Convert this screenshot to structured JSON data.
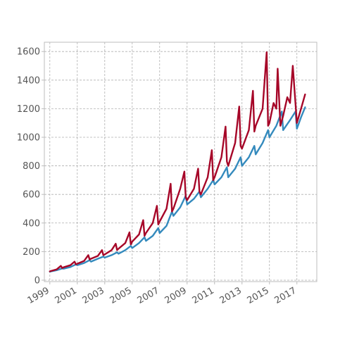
{
  "chart_data": {
    "type": "line",
    "title": "",
    "xlabel": "",
    "ylabel": "",
    "xlim": [
      1998.6,
      2018.45
    ],
    "ylim": [
      -10,
      1665
    ],
    "grid": true,
    "x_ticks": [
      1999,
      2001,
      2003,
      2005,
      2007,
      2009,
      2011,
      2013,
      2015,
      2017
    ],
    "x_tick_labels": [
      "1999",
      "2001",
      "2003",
      "2005",
      "2007",
      "2009",
      "2011",
      "2013",
      "2015",
      "2017"
    ],
    "y_ticks": [
      0,
      200,
      400,
      600,
      800,
      1000,
      1200,
      1400,
      1600
    ],
    "y_tick_labels": [
      "0",
      "200",
      "400",
      "600",
      "800",
      "1000",
      "1200",
      "1400",
      "1600"
    ],
    "colors": {
      "series_a": "#348abd",
      "series_b": "#a60628"
    },
    "series": [
      {
        "color": "#348abd",
        "x": [
          1999.0,
          1999.5,
          1999.9,
          2000.0,
          2000.5,
          2000.9,
          2001.0,
          2001.5,
          2001.9,
          2002.0,
          2002.5,
          2002.9,
          2003.0,
          2003.5,
          2003.9,
          2004.0,
          2004.5,
          2004.9,
          2005.0,
          2005.5,
          2005.9,
          2006.0,
          2006.5,
          2006.9,
          2007.0,
          2007.5,
          2007.9,
          2008.0,
          2008.5,
          2008.9,
          2009.0,
          2009.5,
          2009.9,
          2010.0,
          2010.5,
          2010.9,
          2011.0,
          2011.5,
          2011.9,
          2012.0,
          2012.5,
          2012.9,
          2013.0,
          2013.5,
          2013.9,
          2014.0,
          2014.5,
          2014.9,
          2015.0,
          2015.5,
          2015.9,
          2016.0,
          2016.5,
          2016.9,
          2017.0,
          2017.3,
          2017.6
        ],
        "y": [
          60,
          70,
          82,
          80,
          92,
          110,
          105,
          120,
          140,
          130,
          150,
          165,
          158,
          175,
          195,
          185,
          210,
          240,
          225,
          260,
          300,
          275,
          310,
          365,
          330,
          380,
          480,
          450,
          510,
          590,
          530,
          570,
          620,
          580,
          640,
          700,
          670,
          720,
          790,
          720,
          780,
          860,
          800,
          860,
          940,
          880,
          960,
          1050,
          1000,
          1080,
          1180,
          1050,
          1120,
          1180,
          1060,
          1140,
          1210
        ]
      },
      {
        "color": "#a60628",
        "x": [
          1999.0,
          1999.5,
          1999.8,
          1999.9,
          2000.0,
          2000.5,
          2000.8,
          2000.9,
          2001.0,
          2001.5,
          2001.8,
          2001.9,
          2002.0,
          2002.5,
          2002.8,
          2002.9,
          2003.0,
          2003.5,
          2003.8,
          2003.9,
          2004.0,
          2004.5,
          2004.8,
          2004.9,
          2005.0,
          2005.5,
          2005.8,
          2005.9,
          2006.0,
          2006.5,
          2006.8,
          2006.9,
          2007.0,
          2007.5,
          2007.8,
          2007.9,
          2008.0,
          2008.5,
          2008.8,
          2008.9,
          2009.0,
          2009.5,
          2009.8,
          2009.9,
          2010.0,
          2010.5,
          2010.8,
          2010.9,
          2011.0,
          2011.5,
          2011.8,
          2011.9,
          2012.0,
          2012.5,
          2012.8,
          2012.9,
          2013.0,
          2013.5,
          2013.8,
          2013.9,
          2014.0,
          2014.5,
          2014.8,
          2014.9,
          2015.0,
          2015.3,
          2015.5,
          2015.6,
          2015.8,
          2016.0,
          2016.3,
          2016.5,
          2016.7,
          2017.0,
          2017.3,
          2017.6
        ],
        "y": [
          62,
          75,
          100,
          85,
          90,
          105,
          130,
          110,
          115,
          135,
          175,
          145,
          150,
          170,
          210,
          175,
          180,
          210,
          255,
          210,
          220,
          260,
          335,
          250,
          270,
          320,
          420,
          310,
          330,
          400,
          520,
          390,
          410,
          500,
          675,
          480,
          500,
          640,
          760,
          580,
          560,
          640,
          780,
          620,
          600,
          720,
          910,
          700,
          720,
          860,
          1075,
          830,
          800,
          960,
          1215,
          940,
          920,
          1050,
          1325,
          1040,
          1080,
          1200,
          1595,
          1080,
          1100,
          1240,
          1200,
          1480,
          1080,
          1150,
          1280,
          1240,
          1500,
          1100,
          1200,
          1300
        ]
      }
    ]
  }
}
